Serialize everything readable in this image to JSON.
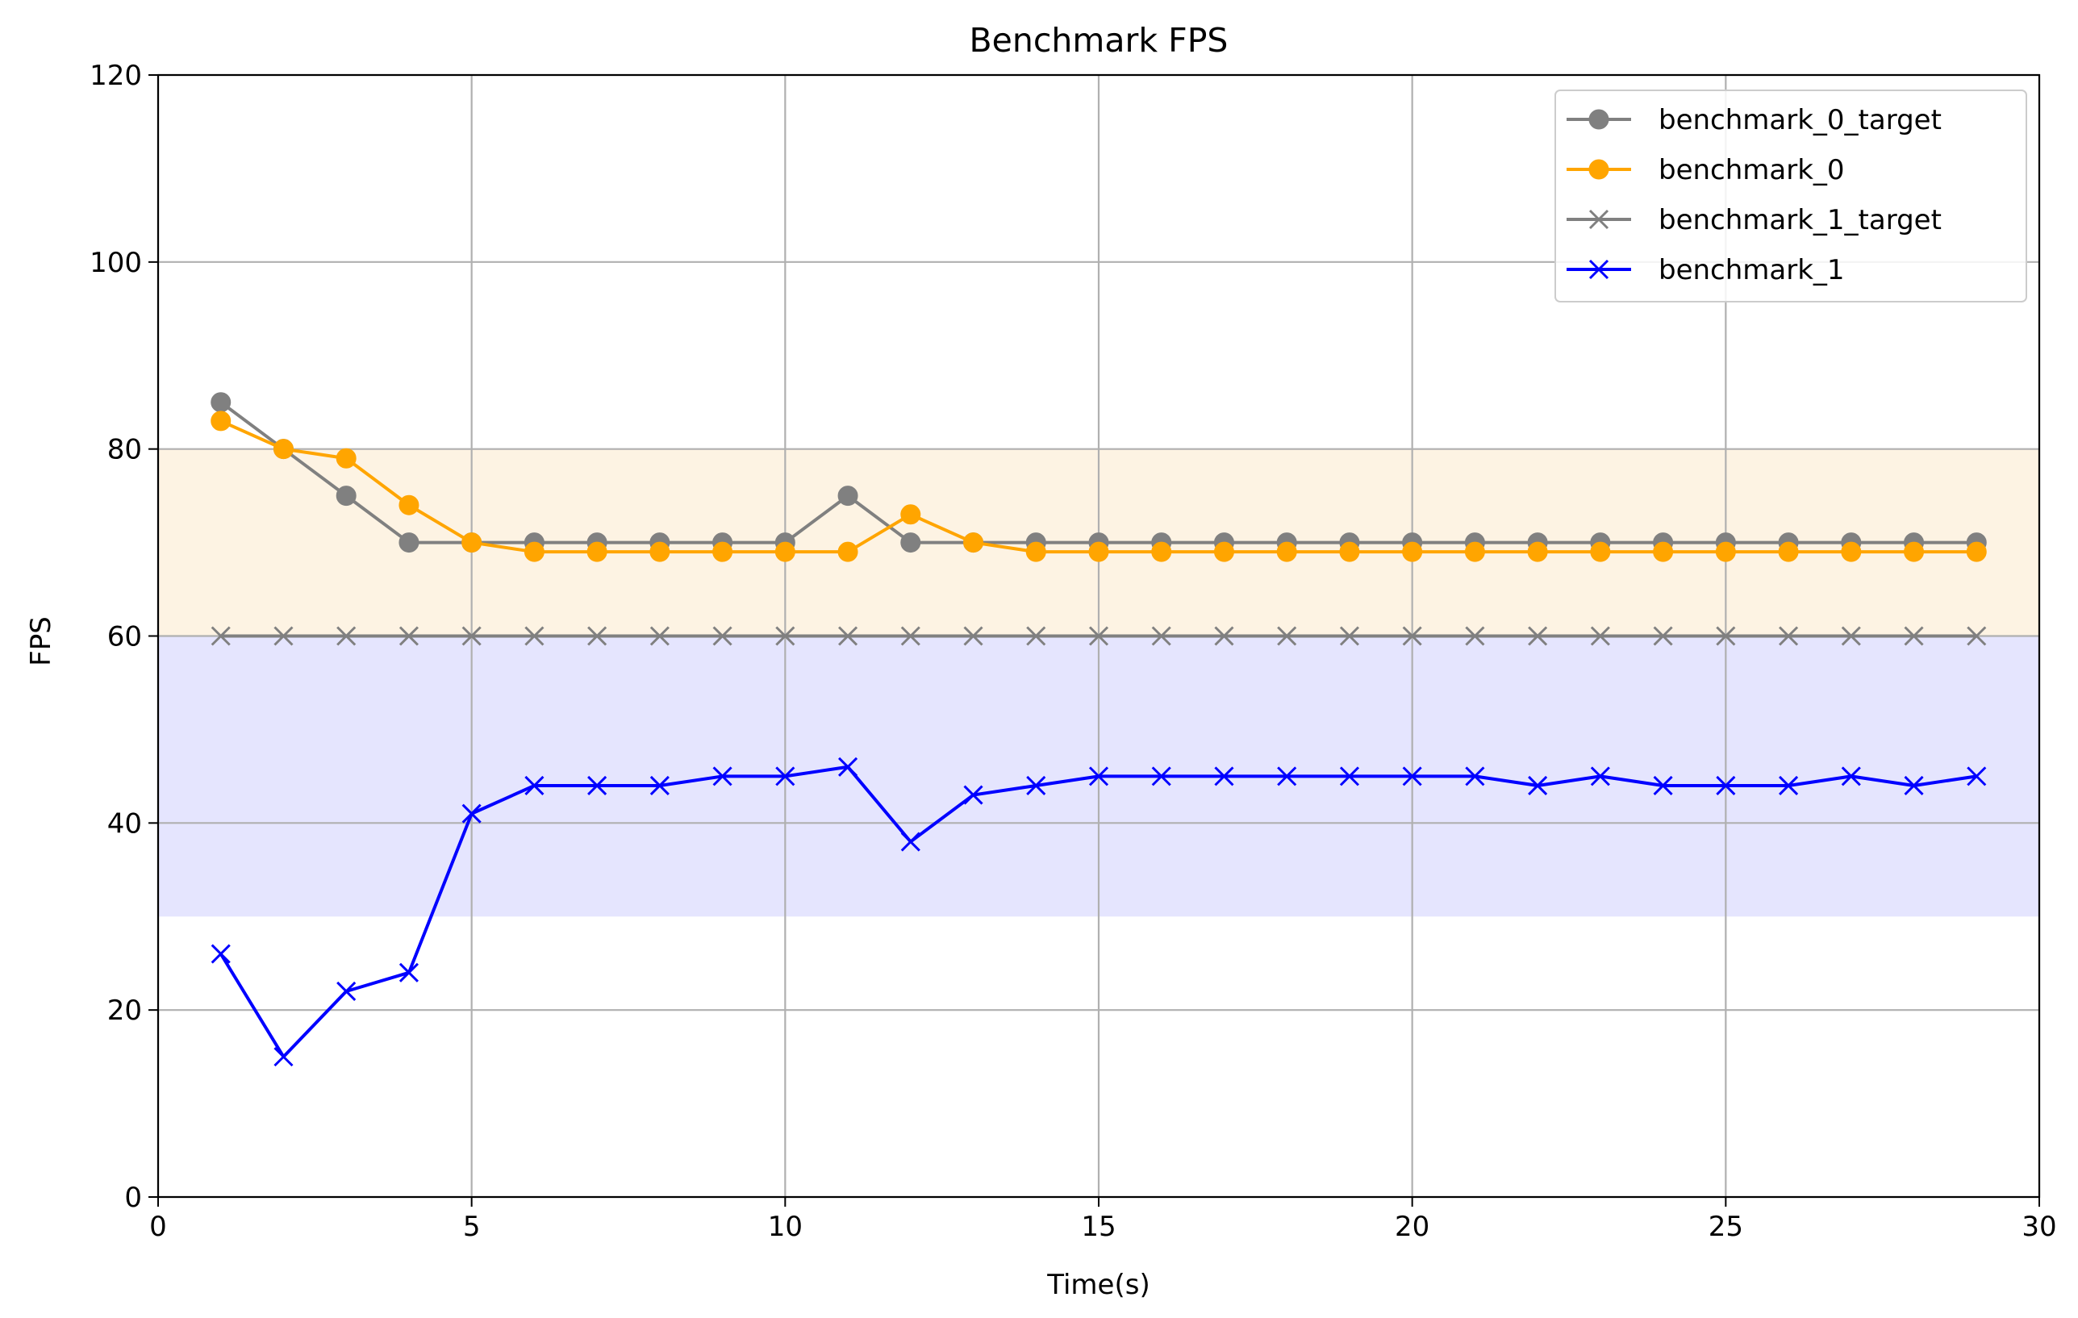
{
  "chart_data": {
    "type": "line",
    "title": "Benchmark FPS",
    "xlabel": "Time(s)",
    "ylabel": "FPS",
    "xlim": [
      0,
      30
    ],
    "ylim": [
      0,
      120
    ],
    "xticks": [
      0,
      5,
      10,
      15,
      20,
      25,
      30
    ],
    "yticks": [
      0,
      20,
      40,
      60,
      80,
      100,
      120
    ],
    "grid": true,
    "legend_position": "top-right",
    "bands": [
      {
        "from": 60,
        "to": 80,
        "color": "#fdf3e3"
      },
      {
        "from": 30,
        "to": 60,
        "color": "#e5e5fe"
      }
    ],
    "x": [
      1,
      2,
      3,
      4,
      5,
      6,
      7,
      8,
      9,
      10,
      11,
      12,
      13,
      14,
      15,
      16,
      17,
      18,
      19,
      20,
      21,
      22,
      23,
      24,
      25,
      26,
      27,
      28,
      29
    ],
    "series": [
      {
        "name": "benchmark_0_target",
        "color": "#808080",
        "marker": "circle",
        "values": [
          85,
          80,
          75,
          70,
          70,
          70,
          70,
          70,
          70,
          70,
          75,
          70,
          70,
          70,
          70,
          70,
          70,
          70,
          70,
          70,
          70,
          70,
          70,
          70,
          70,
          70,
          70,
          70,
          70
        ]
      },
      {
        "name": "benchmark_0",
        "color": "#ffa500",
        "marker": "circle",
        "values": [
          83,
          80,
          79,
          74,
          70,
          69,
          69,
          69,
          69,
          69,
          69,
          73,
          70,
          69,
          69,
          69,
          69,
          69,
          69,
          69,
          69,
          69,
          69,
          69,
          69,
          69,
          69,
          69,
          69
        ]
      },
      {
        "name": "benchmark_1_target",
        "color": "#808080",
        "marker": "x",
        "values": [
          60,
          60,
          60,
          60,
          60,
          60,
          60,
          60,
          60,
          60,
          60,
          60,
          60,
          60,
          60,
          60,
          60,
          60,
          60,
          60,
          60,
          60,
          60,
          60,
          60,
          60,
          60,
          60,
          60
        ]
      },
      {
        "name": "benchmark_1",
        "color": "#0000ff",
        "marker": "x",
        "values": [
          26,
          15,
          22,
          24,
          41,
          44,
          44,
          44,
          45,
          45,
          46,
          38,
          43,
          44,
          45,
          45,
          45,
          45,
          45,
          45,
          45,
          44,
          45,
          44,
          44,
          44,
          45,
          44,
          45
        ]
      }
    ]
  }
}
